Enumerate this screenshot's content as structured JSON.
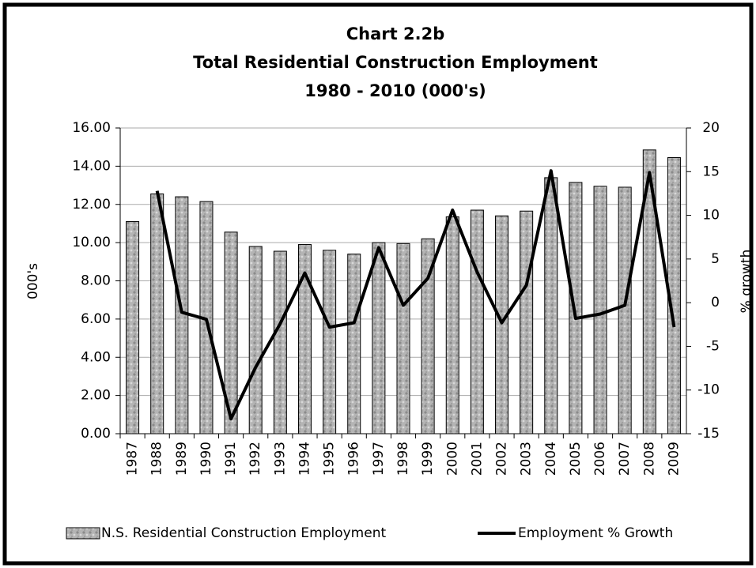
{
  "chart_data": {
    "type": "bar_line",
    "title": [
      "Chart 2.2b",
      "Total Residential Construction Employment",
      "1980 - 2010 (000's)"
    ],
    "y_label": "000's",
    "y2_label": "% growth",
    "categories": [
      "1987",
      "1988",
      "1989",
      "1990",
      "1991",
      "1992",
      "1993",
      "1994",
      "1995",
      "1996",
      "1997",
      "1998",
      "1999",
      "2000",
      "2001",
      "2002",
      "2003",
      "2004",
      "2005",
      "2006",
      "2007",
      "2008",
      "2009"
    ],
    "series": [
      {
        "name": "N.S. Residential Construction Employment",
        "type": "bar",
        "color": "#a8a8a8",
        "values": [
          11.1,
          12.55,
          12.4,
          12.15,
          10.55,
          9.8,
          9.55,
          9.9,
          9.6,
          9.4,
          10.0,
          9.95,
          10.2,
          11.35,
          11.7,
          11.4,
          11.65,
          13.4,
          13.15,
          12.95,
          12.9,
          14.85,
          14.45
        ]
      },
      {
        "name": "Employment % Growth",
        "type": "line",
        "color": "#000000",
        "axis": "y2",
        "values": [
          null,
          12.8,
          -1.1,
          -1.9,
          -13.3,
          -7.4,
          -2.4,
          3.4,
          -2.8,
          -2.3,
          6.3,
          -0.3,
          2.8,
          10.6,
          3.5,
          -2.3,
          2.0,
          15.1,
          -1.8,
          -1.3,
          -0.3,
          14.9,
          -2.8
        ]
      }
    ],
    "ylim": [
      0,
      16
    ],
    "yticks": [
      {
        "value": 0,
        "label": "0.00"
      },
      {
        "value": 2,
        "label": "2.00"
      },
      {
        "value": 4,
        "label": "4.00"
      },
      {
        "value": 6,
        "label": "6.00"
      },
      {
        "value": 8,
        "label": "8.00"
      },
      {
        "value": 10,
        "label": "10.00"
      },
      {
        "value": 12,
        "label": "12.00"
      },
      {
        "value": 14,
        "label": "14.00"
      },
      {
        "value": 16,
        "label": "16.00"
      }
    ],
    "y2lim": [
      -15,
      20
    ],
    "y2ticks": [
      -15,
      -10,
      -5,
      0,
      5,
      10,
      15,
      20
    ],
    "grid": true,
    "legend": "bottom"
  }
}
